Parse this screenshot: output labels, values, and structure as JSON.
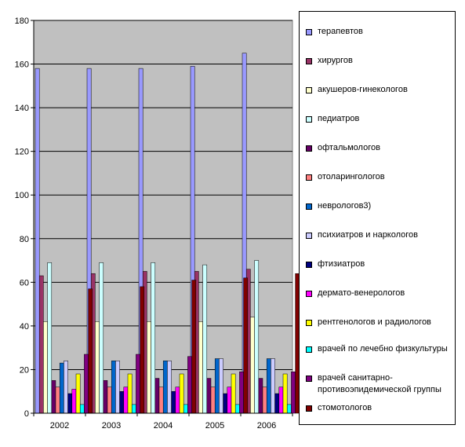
{
  "chart_data": {
    "type": "bar",
    "categories": [
      "2002",
      "2003",
      "2004",
      "2005",
      "2006"
    ],
    "ylim": [
      0,
      180
    ],
    "yticks": [
      0,
      20,
      40,
      60,
      80,
      100,
      120,
      140,
      160,
      180
    ],
    "grid": true,
    "plot_background": "#c0c0c0",
    "legend_position": "right",
    "series": [
      {
        "name": "терапевтов",
        "color": "#9999ff",
        "values": [
          158,
          158,
          158,
          159,
          165
        ]
      },
      {
        "name": "хирургов",
        "color": "#993366",
        "values": [
          63,
          64,
          65,
          65,
          66
        ]
      },
      {
        "name": "акушеров-гинекологов",
        "color": "#ffffcc",
        "values": [
          42,
          42,
          42,
          42,
          44
        ]
      },
      {
        "name": "педиатров",
        "color": "#ccffff",
        "values": [
          69,
          69,
          69,
          68,
          70
        ]
      },
      {
        "name": "офтальмологов",
        "color": "#660066",
        "values": [
          15,
          15,
          16,
          16,
          16
        ]
      },
      {
        "name": "отоларингологов",
        "color": "#ff8080",
        "values": [
          12,
          12,
          12,
          12,
          12
        ]
      },
      {
        "name": "неврологов3)",
        "color": "#0066cc",
        "values": [
          23,
          24,
          24,
          25,
          25
        ]
      },
      {
        "name": "психиатров и наркологов",
        "color": "#ccccff",
        "values": [
          24,
          24,
          24,
          25,
          25
        ]
      },
      {
        "name": "фтизиатров",
        "color": "#000080",
        "values": [
          9,
          10,
          10,
          9,
          9
        ]
      },
      {
        "name": "дермато-венерологов",
        "color": "#ff00ff",
        "values": [
          11,
          12,
          12,
          12,
          12
        ]
      },
      {
        "name": "рентгенологов и радиологов",
        "color": "#ffff00",
        "values": [
          18,
          18,
          18,
          18,
          18
        ]
      },
      {
        "name": "врачей по лечебно физкультуры",
        "color": "#00ffff",
        "values": [
          4,
          4,
          4,
          4,
          4
        ]
      },
      {
        "name": "врачей санитарно-противоэпидемической группы",
        "color": "#800080",
        "values": [
          27,
          27,
          26,
          19,
          19
        ]
      },
      {
        "name": "стомотологов",
        "color": "#800000",
        "values": [
          57,
          58,
          61,
          62,
          64
        ]
      }
    ]
  },
  "legend": {
    "items": [
      {
        "label": "терапевтов"
      },
      {
        "label": "хирургов"
      },
      {
        "label": "акушеров-гинекологов"
      },
      {
        "label": "педиатров"
      },
      {
        "label": "офтальмологов"
      },
      {
        "label": "отоларингологов"
      },
      {
        "label": "неврологов3)"
      },
      {
        "label": "психиатров и наркологов"
      },
      {
        "label": "фтизиатров"
      },
      {
        "label": "дермато-венерологов"
      },
      {
        "label": "рентгенологов и радиологов"
      },
      {
        "label": "врачей по лечебно физкультуры"
      },
      {
        "label": "врачей санитарно-противоэпидемической группы"
      },
      {
        "label": "стомотологов"
      }
    ]
  }
}
